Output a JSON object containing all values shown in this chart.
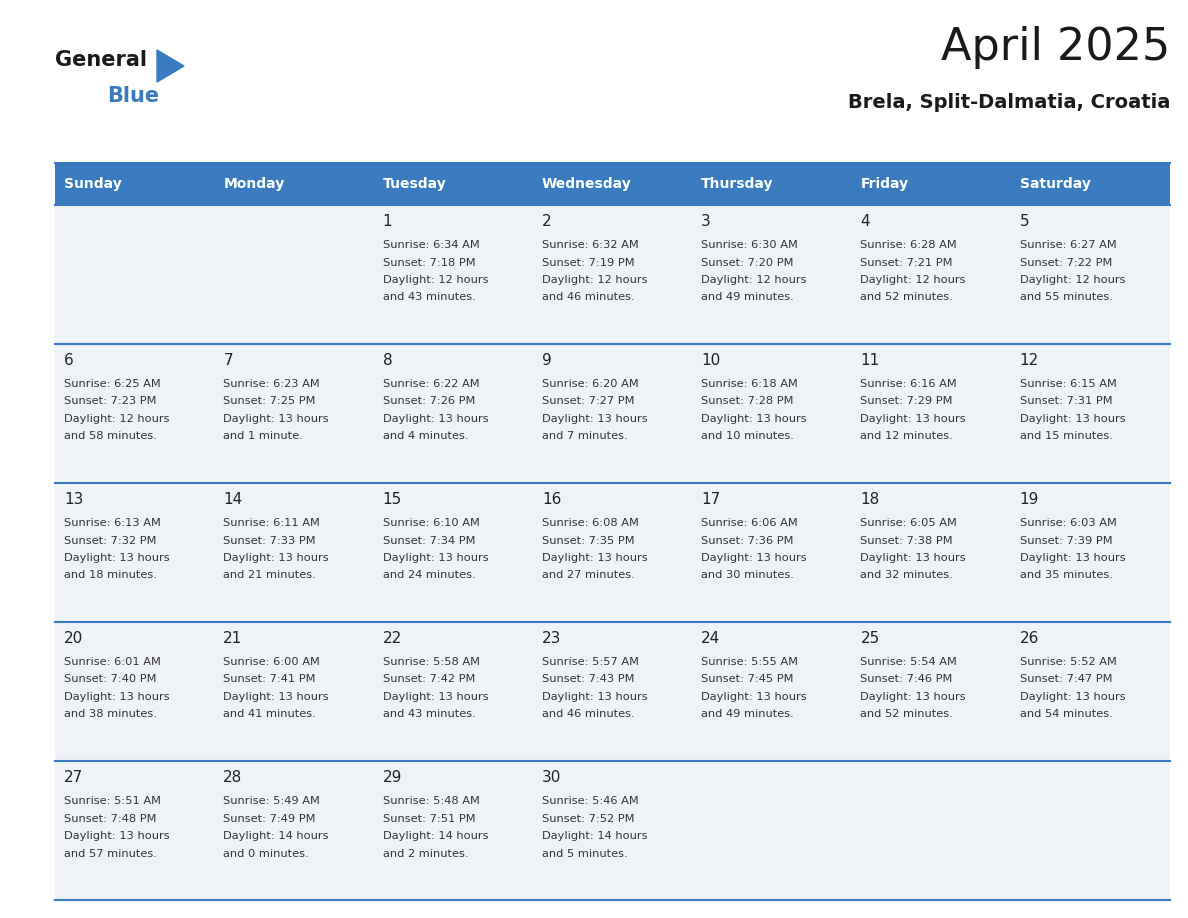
{
  "title": "April 2025",
  "subtitle": "Brela, Split-Dalmatia, Croatia",
  "header_bg": "#3a7bbf",
  "header_text_color": "#ffffff",
  "cell_bg": "#eff3f8",
  "cell_bg_empty": "#f5f7fa",
  "row_line_color": "#3a7bbf",
  "days_of_week": [
    "Sunday",
    "Monday",
    "Tuesday",
    "Wednesday",
    "Thursday",
    "Friday",
    "Saturday"
  ],
  "calendar": [
    [
      {
        "day": "",
        "lines": []
      },
      {
        "day": "",
        "lines": []
      },
      {
        "day": "1",
        "lines": [
          "Sunrise: 6:34 AM",
          "Sunset: 7:18 PM",
          "Daylight: 12 hours",
          "and 43 minutes."
        ]
      },
      {
        "day": "2",
        "lines": [
          "Sunrise: 6:32 AM",
          "Sunset: 7:19 PM",
          "Daylight: 12 hours",
          "and 46 minutes."
        ]
      },
      {
        "day": "3",
        "lines": [
          "Sunrise: 6:30 AM",
          "Sunset: 7:20 PM",
          "Daylight: 12 hours",
          "and 49 minutes."
        ]
      },
      {
        "day": "4",
        "lines": [
          "Sunrise: 6:28 AM",
          "Sunset: 7:21 PM",
          "Daylight: 12 hours",
          "and 52 minutes."
        ]
      },
      {
        "day": "5",
        "lines": [
          "Sunrise: 6:27 AM",
          "Sunset: 7:22 PM",
          "Daylight: 12 hours",
          "and 55 minutes."
        ]
      }
    ],
    [
      {
        "day": "6",
        "lines": [
          "Sunrise: 6:25 AM",
          "Sunset: 7:23 PM",
          "Daylight: 12 hours",
          "and 58 minutes."
        ]
      },
      {
        "day": "7",
        "lines": [
          "Sunrise: 6:23 AM",
          "Sunset: 7:25 PM",
          "Daylight: 13 hours",
          "and 1 minute."
        ]
      },
      {
        "day": "8",
        "lines": [
          "Sunrise: 6:22 AM",
          "Sunset: 7:26 PM",
          "Daylight: 13 hours",
          "and 4 minutes."
        ]
      },
      {
        "day": "9",
        "lines": [
          "Sunrise: 6:20 AM",
          "Sunset: 7:27 PM",
          "Daylight: 13 hours",
          "and 7 minutes."
        ]
      },
      {
        "day": "10",
        "lines": [
          "Sunrise: 6:18 AM",
          "Sunset: 7:28 PM",
          "Daylight: 13 hours",
          "and 10 minutes."
        ]
      },
      {
        "day": "11",
        "lines": [
          "Sunrise: 6:16 AM",
          "Sunset: 7:29 PM",
          "Daylight: 13 hours",
          "and 12 minutes."
        ]
      },
      {
        "day": "12",
        "lines": [
          "Sunrise: 6:15 AM",
          "Sunset: 7:31 PM",
          "Daylight: 13 hours",
          "and 15 minutes."
        ]
      }
    ],
    [
      {
        "day": "13",
        "lines": [
          "Sunrise: 6:13 AM",
          "Sunset: 7:32 PM",
          "Daylight: 13 hours",
          "and 18 minutes."
        ]
      },
      {
        "day": "14",
        "lines": [
          "Sunrise: 6:11 AM",
          "Sunset: 7:33 PM",
          "Daylight: 13 hours",
          "and 21 minutes."
        ]
      },
      {
        "day": "15",
        "lines": [
          "Sunrise: 6:10 AM",
          "Sunset: 7:34 PM",
          "Daylight: 13 hours",
          "and 24 minutes."
        ]
      },
      {
        "day": "16",
        "lines": [
          "Sunrise: 6:08 AM",
          "Sunset: 7:35 PM",
          "Daylight: 13 hours",
          "and 27 minutes."
        ]
      },
      {
        "day": "17",
        "lines": [
          "Sunrise: 6:06 AM",
          "Sunset: 7:36 PM",
          "Daylight: 13 hours",
          "and 30 minutes."
        ]
      },
      {
        "day": "18",
        "lines": [
          "Sunrise: 6:05 AM",
          "Sunset: 7:38 PM",
          "Daylight: 13 hours",
          "and 32 minutes."
        ]
      },
      {
        "day": "19",
        "lines": [
          "Sunrise: 6:03 AM",
          "Sunset: 7:39 PM",
          "Daylight: 13 hours",
          "and 35 minutes."
        ]
      }
    ],
    [
      {
        "day": "20",
        "lines": [
          "Sunrise: 6:01 AM",
          "Sunset: 7:40 PM",
          "Daylight: 13 hours",
          "and 38 minutes."
        ]
      },
      {
        "day": "21",
        "lines": [
          "Sunrise: 6:00 AM",
          "Sunset: 7:41 PM",
          "Daylight: 13 hours",
          "and 41 minutes."
        ]
      },
      {
        "day": "22",
        "lines": [
          "Sunrise: 5:58 AM",
          "Sunset: 7:42 PM",
          "Daylight: 13 hours",
          "and 43 minutes."
        ]
      },
      {
        "day": "23",
        "lines": [
          "Sunrise: 5:57 AM",
          "Sunset: 7:43 PM",
          "Daylight: 13 hours",
          "and 46 minutes."
        ]
      },
      {
        "day": "24",
        "lines": [
          "Sunrise: 5:55 AM",
          "Sunset: 7:45 PM",
          "Daylight: 13 hours",
          "and 49 minutes."
        ]
      },
      {
        "day": "25",
        "lines": [
          "Sunrise: 5:54 AM",
          "Sunset: 7:46 PM",
          "Daylight: 13 hours",
          "and 52 minutes."
        ]
      },
      {
        "day": "26",
        "lines": [
          "Sunrise: 5:52 AM",
          "Sunset: 7:47 PM",
          "Daylight: 13 hours",
          "and 54 minutes."
        ]
      }
    ],
    [
      {
        "day": "27",
        "lines": [
          "Sunrise: 5:51 AM",
          "Sunset: 7:48 PM",
          "Daylight: 13 hours",
          "and 57 minutes."
        ]
      },
      {
        "day": "28",
        "lines": [
          "Sunrise: 5:49 AM",
          "Sunset: 7:49 PM",
          "Daylight: 14 hours",
          "and 0 minutes."
        ]
      },
      {
        "day": "29",
        "lines": [
          "Sunrise: 5:48 AM",
          "Sunset: 7:51 PM",
          "Daylight: 14 hours",
          "and 2 minutes."
        ]
      },
      {
        "day": "30",
        "lines": [
          "Sunrise: 5:46 AM",
          "Sunset: 7:52 PM",
          "Daylight: 14 hours",
          "and 5 minutes."
        ]
      },
      {
        "day": "",
        "lines": []
      },
      {
        "day": "",
        "lines": []
      },
      {
        "day": "",
        "lines": []
      }
    ]
  ]
}
